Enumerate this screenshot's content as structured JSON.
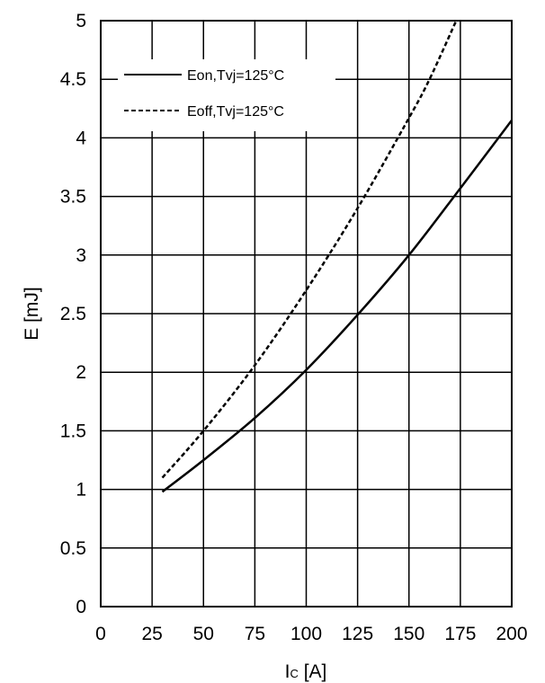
{
  "chart_data": {
    "type": "line",
    "xlabel_main": "I",
    "xlabel_sub": "C",
    "xlabel_unit": " [A]",
    "ylabel": "E [mJ]",
    "xlim": [
      0,
      200
    ],
    "ylim": [
      0,
      5
    ],
    "x_ticks": [
      "0",
      "25",
      "50",
      "75",
      "100",
      "125",
      "150",
      "175",
      "200"
    ],
    "y_ticks": [
      "0",
      "0.5",
      "1",
      "1.5",
      "2",
      "2.5",
      "3",
      "3.5",
      "4",
      "4.5",
      "5"
    ],
    "grid": true,
    "legend_position": "top-left",
    "series": [
      {
        "name": "Eon,Tvj=125°C",
        "style": "solid",
        "color": "#000000",
        "x": [
          30,
          50,
          75,
          100,
          125,
          150,
          175,
          200
        ],
        "y": [
          0.98,
          1.25,
          1.61,
          2.02,
          2.49,
          3.0,
          3.57,
          4.15
        ]
      },
      {
        "name": "Eoff,Tvj=125°C",
        "style": "dashed",
        "color": "#000000",
        "x": [
          30,
          50,
          75,
          100,
          125,
          150,
          160,
          173
        ],
        "y": [
          1.1,
          1.5,
          2.06,
          2.7,
          3.4,
          4.17,
          4.5,
          5.0
        ]
      }
    ]
  }
}
